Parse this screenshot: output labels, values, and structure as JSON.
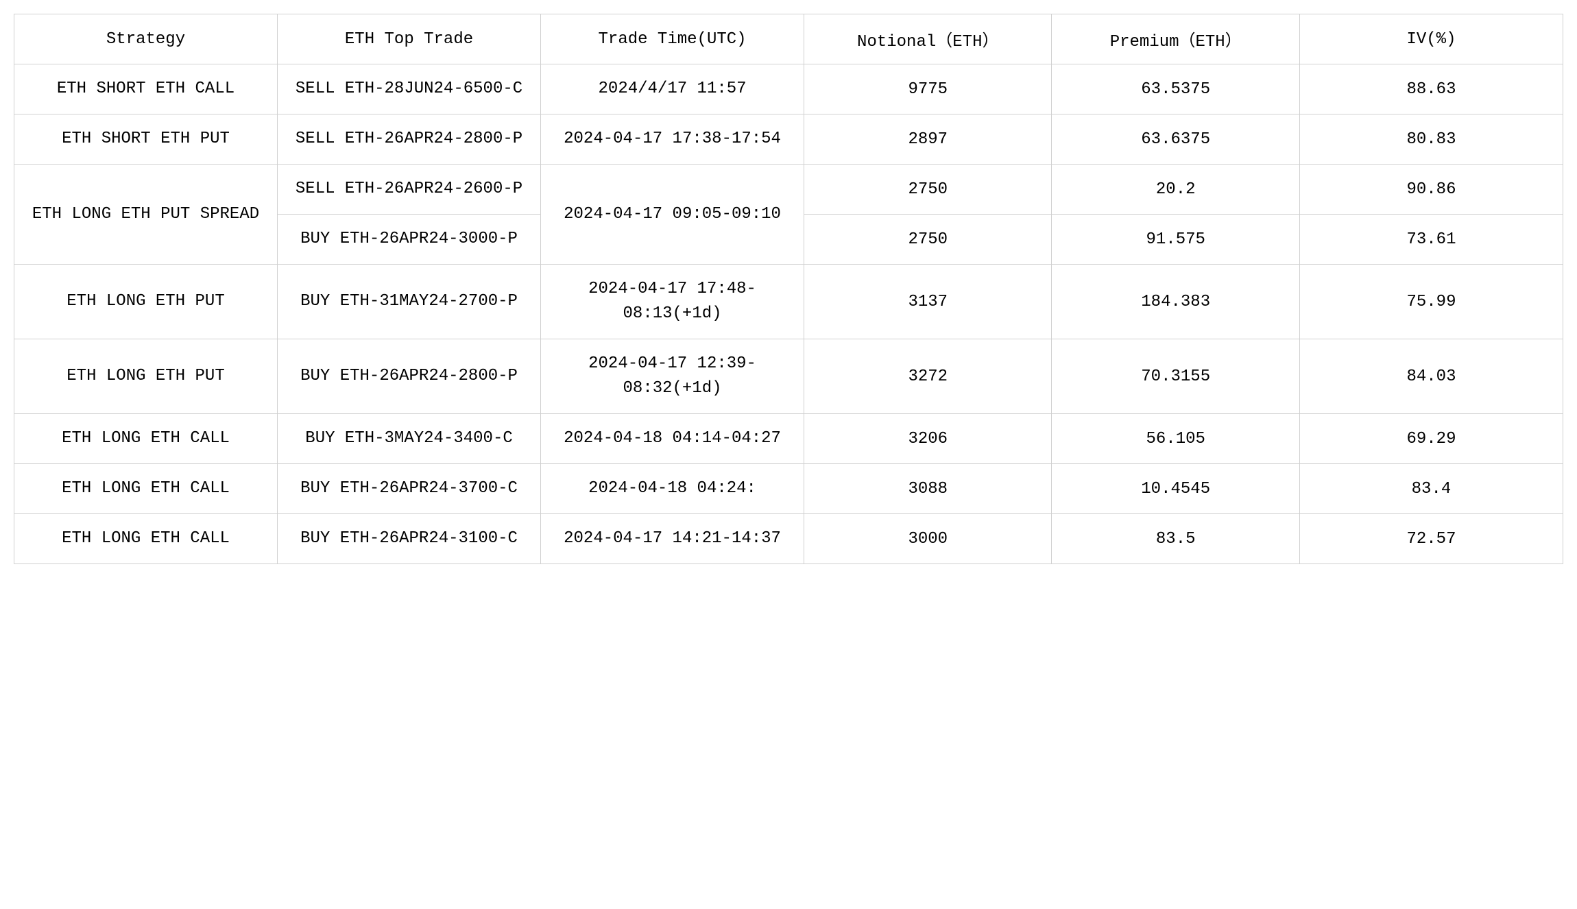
{
  "table": {
    "type": "table",
    "font_family": "Courier New / SimSun monospace",
    "header_fontsize": 24,
    "cell_fontsize": 24,
    "border_color": "#d0d0d0",
    "background_color": "#ffffff",
    "text_color": "#000000",
    "columns": [
      {
        "key": "strategy",
        "label": "Strategy",
        "width_pct": 17,
        "align": "center"
      },
      {
        "key": "top_trade",
        "label": "ETH Top Trade",
        "width_pct": 17,
        "align": "center"
      },
      {
        "key": "trade_time",
        "label": "Trade Time(UTC)",
        "width_pct": 17,
        "align": "center"
      },
      {
        "key": "notional",
        "label": "Notional（ETH）",
        "width_pct": 16,
        "align": "center"
      },
      {
        "key": "premium",
        "label": "Premium（ETH）",
        "width_pct": 16,
        "align": "center"
      },
      {
        "key": "iv",
        "label": "IV(%)",
        "width_pct": 17,
        "align": "center"
      }
    ],
    "rows": [
      {
        "strategy": "ETH SHORT ETH CALL",
        "top_trade": "SELL ETH-28JUN24-6500-C",
        "trade_time": "2024/4/17 11:57",
        "notional": "9775",
        "premium": "63.5375",
        "iv": "88.63"
      },
      {
        "strategy": "ETH SHORT ETH PUT",
        "top_trade": "SELL ETH-26APR24-2800-P",
        "trade_time": "2024-04-17 17:38-17:54",
        "notional": "2897",
        "premium": "63.6375",
        "iv": "80.83"
      },
      {
        "strategy": "ETH LONG ETH PUT SPREAD",
        "top_trade": "SELL ETH-26APR24-2600-P",
        "trade_time": "2024-04-17 09:05-09:10",
        "notional": "2750",
        "premium": "20.2",
        "iv": "90.86",
        "strategy_rowspan": 2,
        "time_rowspan": 2
      },
      {
        "top_trade": "BUY ETH-26APR24-3000-P",
        "notional": "2750",
        "premium": "91.575",
        "iv": "73.61"
      },
      {
        "strategy": "ETH LONG ETH PUT",
        "top_trade": "BUY ETH-31MAY24-2700-P",
        "trade_time": "2024-04-17 17:48-08:13(+1d)",
        "notional": "3137",
        "premium": "184.383",
        "iv": "75.99"
      },
      {
        "strategy": "ETH LONG ETH PUT",
        "top_trade": "BUY ETH-26APR24-2800-P",
        "trade_time": "2024-04-17 12:39-08:32(+1d)",
        "notional": "3272",
        "premium": "70.3155",
        "iv": "84.03"
      },
      {
        "strategy": "ETH LONG ETH CALL",
        "top_trade": "BUY ETH-3MAY24-3400-C",
        "trade_time": "2024-04-18 04:14-04:27",
        "notional": "3206",
        "premium": "56.105",
        "iv": "69.29"
      },
      {
        "strategy": "ETH LONG ETH CALL",
        "top_trade": "BUY ETH-26APR24-3700-C",
        "trade_time": "2024-04-18 04:24:",
        "notional": "3088",
        "premium": "10.4545",
        "iv": "83.4"
      },
      {
        "strategy": "ETH LONG ETH CALL",
        "top_trade": "BUY ETH-26APR24-3100-C",
        "trade_time": "2024-04-17 14:21-14:37",
        "notional": "3000",
        "premium": "83.5",
        "iv": "72.57"
      }
    ]
  }
}
